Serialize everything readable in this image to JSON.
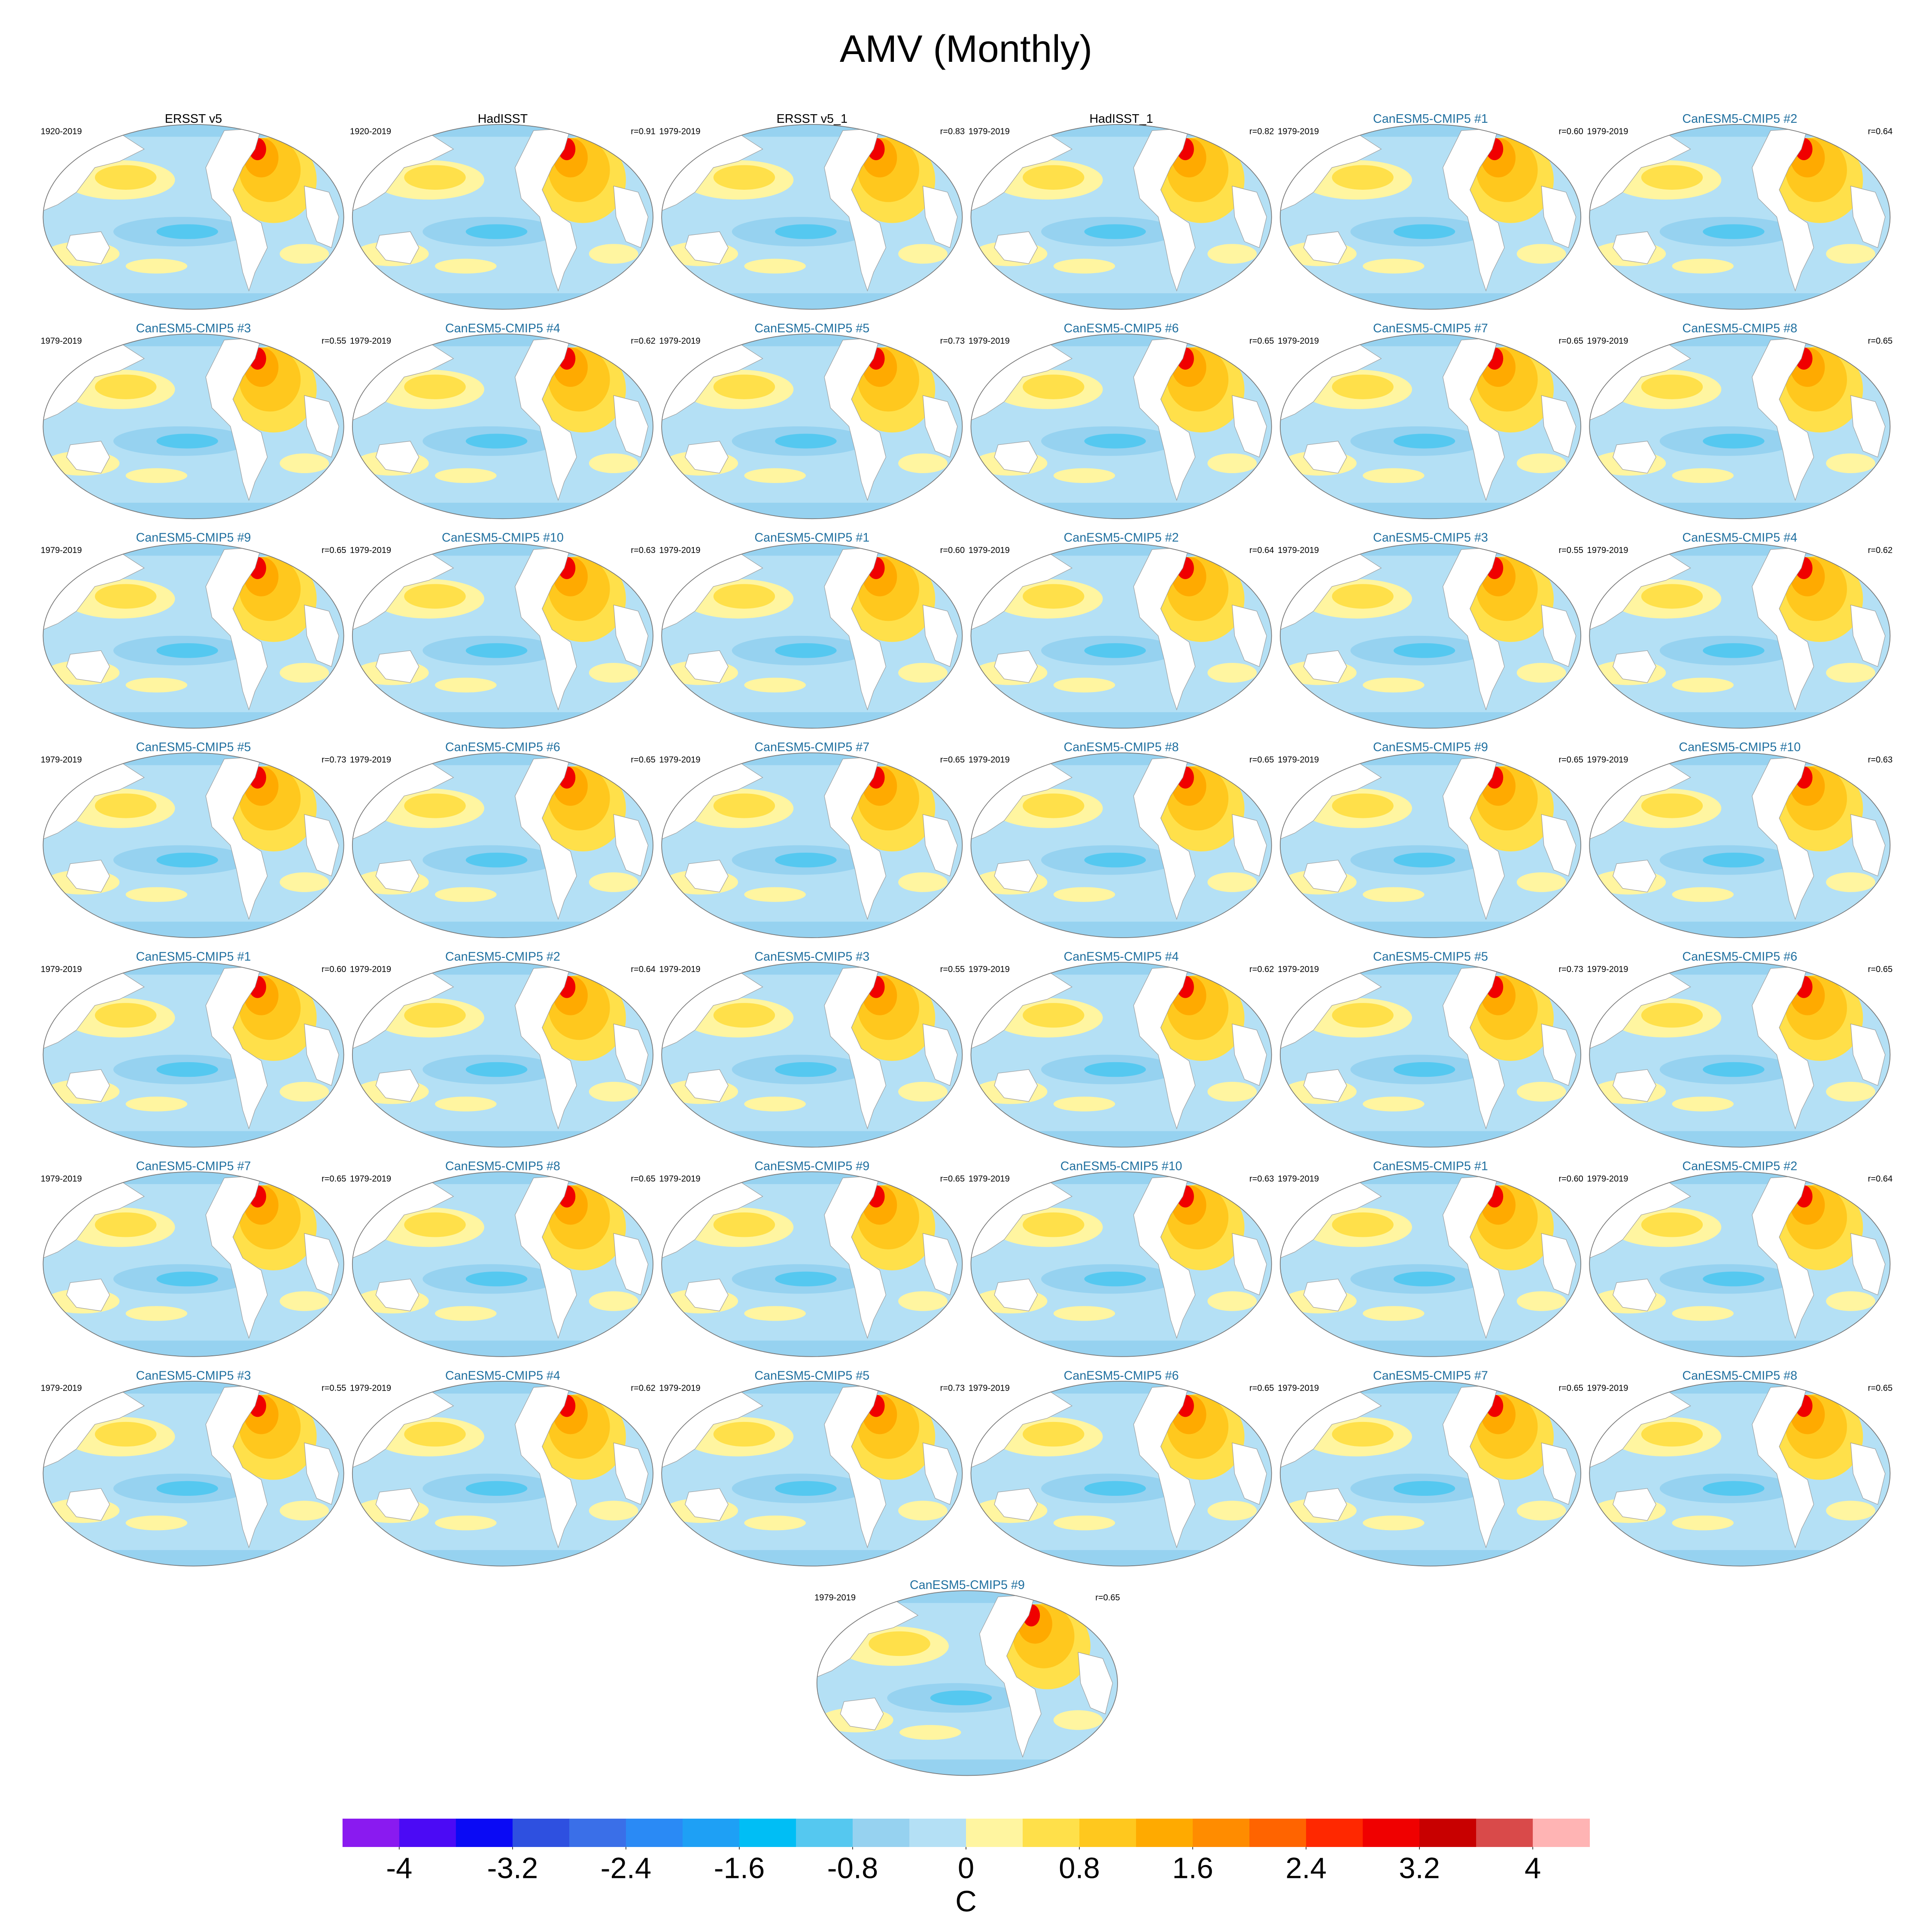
{
  "title": "AMV (Monthly)",
  "panels": [
    {
      "title": "ERSST v5",
      "title_color": "#000000",
      "period": "1920-2019"
    },
    {
      "title": "HadISST",
      "title_color": "#000000",
      "period": "1920-2019",
      "r": "r=0.91"
    },
    {
      "title": "ERSST v5_1",
      "title_color": "#000000",
      "period": "1979-2019",
      "r": "r=0.83"
    },
    {
      "title": "HadISST_1",
      "title_color": "#000000",
      "period": "1979-2019",
      "r": "r=0.82"
    },
    {
      "title": "CanESM5-CMIP5 #1",
      "title_color": "#1f6f9f",
      "period": "1979-2019",
      "r": "r=0.60"
    },
    {
      "title": "CanESM5-CMIP5 #2",
      "title_color": "#1f6f9f",
      "period": "1979-2019",
      "r": "r=0.64"
    },
    {
      "title": "CanESM5-CMIP5 #3",
      "title_color": "#1f6f9f",
      "period": "1979-2019",
      "r": "r=0.55"
    },
    {
      "title": "CanESM5-CMIP5 #4",
      "title_color": "#1f6f9f",
      "period": "1979-2019",
      "r": "r=0.62"
    },
    {
      "title": "CanESM5-CMIP5 #5",
      "title_color": "#1f6f9f",
      "period": "1979-2019",
      "r": "r=0.73"
    },
    {
      "title": "CanESM5-CMIP5 #6",
      "title_color": "#1f6f9f",
      "period": "1979-2019",
      "r": "r=0.65"
    },
    {
      "title": "CanESM5-CMIP5 #7",
      "title_color": "#1f6f9f",
      "period": "1979-2019",
      "r": "r=0.65"
    },
    {
      "title": "CanESM5-CMIP5 #8",
      "title_color": "#1f6f9f",
      "period": "1979-2019",
      "r": "r=0.65"
    },
    {
      "title": "CanESM5-CMIP5 #9",
      "title_color": "#1f6f9f",
      "period": "1979-2019",
      "r": "r=0.65"
    },
    {
      "title": "CanESM5-CMIP5 #10",
      "title_color": "#1f6f9f",
      "period": "1979-2019",
      "r": "r=0.63"
    },
    {
      "title": "CanESM5-CMIP5 #1",
      "title_color": "#1f6f9f",
      "period": "1979-2019",
      "r": "r=0.60"
    },
    {
      "title": "CanESM5-CMIP5 #2",
      "title_color": "#1f6f9f",
      "period": "1979-2019",
      "r": "r=0.64"
    },
    {
      "title": "CanESM5-CMIP5 #3",
      "title_color": "#1f6f9f",
      "period": "1979-2019",
      "r": "r=0.55"
    },
    {
      "title": "CanESM5-CMIP5 #4",
      "title_color": "#1f6f9f",
      "period": "1979-2019",
      "r": "r=0.62"
    },
    {
      "title": "CanESM5-CMIP5 #5",
      "title_color": "#1f6f9f",
      "period": "1979-2019",
      "r": "r=0.73"
    },
    {
      "title": "CanESM5-CMIP5 #6",
      "title_color": "#1f6f9f",
      "period": "1979-2019",
      "r": "r=0.65"
    },
    {
      "title": "CanESM5-CMIP5 #7",
      "title_color": "#1f6f9f",
      "period": "1979-2019",
      "r": "r=0.65"
    },
    {
      "title": "CanESM5-CMIP5 #8",
      "title_color": "#1f6f9f",
      "period": "1979-2019",
      "r": "r=0.65"
    },
    {
      "title": "CanESM5-CMIP5 #9",
      "title_color": "#1f6f9f",
      "period": "1979-2019",
      "r": "r=0.65"
    },
    {
      "title": "CanESM5-CMIP5 #10",
      "title_color": "#1f6f9f",
      "period": "1979-2019",
      "r": "r=0.63"
    },
    {
      "title": "CanESM5-CMIP5 #1",
      "title_color": "#1f6f9f",
      "period": "1979-2019",
      "r": "r=0.60"
    },
    {
      "title": "CanESM5-CMIP5 #2",
      "title_color": "#1f6f9f",
      "period": "1979-2019",
      "r": "r=0.64"
    },
    {
      "title": "CanESM5-CMIP5 #3",
      "title_color": "#1f6f9f",
      "period": "1979-2019",
      "r": "r=0.55"
    },
    {
      "title": "CanESM5-CMIP5 #4",
      "title_color": "#1f6f9f",
      "period": "1979-2019",
      "r": "r=0.62"
    },
    {
      "title": "CanESM5-CMIP5 #5",
      "title_color": "#1f6f9f",
      "period": "1979-2019",
      "r": "r=0.73"
    },
    {
      "title": "CanESM5-CMIP5 #6",
      "title_color": "#1f6f9f",
      "period": "1979-2019",
      "r": "r=0.65"
    },
    {
      "title": "CanESM5-CMIP5 #7",
      "title_color": "#1f6f9f",
      "period": "1979-2019",
      "r": "r=0.65"
    },
    {
      "title": "CanESM5-CMIP5 #8",
      "title_color": "#1f6f9f",
      "period": "1979-2019",
      "r": "r=0.65"
    },
    {
      "title": "CanESM5-CMIP5 #9",
      "title_color": "#1f6f9f",
      "period": "1979-2019",
      "r": "r=0.65"
    },
    {
      "title": "CanESM5-CMIP5 #10",
      "title_color": "#1f6f9f",
      "period": "1979-2019",
      "r": "r=0.63"
    },
    {
      "title": "CanESM5-CMIP5 #1",
      "title_color": "#1f6f9f",
      "period": "1979-2019",
      "r": "r=0.60"
    },
    {
      "title": "CanESM5-CMIP5 #2",
      "title_color": "#1f6f9f",
      "period": "1979-2019",
      "r": "r=0.64"
    },
    {
      "title": "CanESM5-CMIP5 #3",
      "title_color": "#1f6f9f",
      "period": "1979-2019",
      "r": "r=0.55"
    },
    {
      "title": "CanESM5-CMIP5 #4",
      "title_color": "#1f6f9f",
      "period": "1979-2019",
      "r": "r=0.62"
    },
    {
      "title": "CanESM5-CMIP5 #5",
      "title_color": "#1f6f9f",
      "period": "1979-2019",
      "r": "r=0.73"
    },
    {
      "title": "CanESM5-CMIP5 #6",
      "title_color": "#1f6f9f",
      "period": "1979-2019",
      "r": "r=0.65"
    },
    {
      "title": "CanESM5-CMIP5 #7",
      "title_color": "#1f6f9f",
      "period": "1979-2019",
      "r": "r=0.65"
    },
    {
      "title": "CanESM5-CMIP5 #8",
      "title_color": "#1f6f9f",
      "period": "1979-2019",
      "r": "r=0.65"
    },
    {
      "title": "CanESM5-CMIP5 #9",
      "title_color": "#1f6f9f",
      "period": "1979-2019",
      "r": "r=0.65"
    }
  ],
  "colorbar": {
    "label": "C",
    "lim": [
      -4.4,
      4.4
    ],
    "ticks": [
      -4,
      -3.2,
      -2.4,
      -1.6,
      -0.8,
      0,
      0.8,
      1.6,
      2.4,
      3.2,
      4
    ],
    "colors": [
      "#8a1af0",
      "#4b0af5",
      "#0a0af5",
      "#2e50e0",
      "#3a6fe8",
      "#2a8af5",
      "#1ea0f5",
      "#00bef5",
      "#55c8f0",
      "#96d2f0",
      "#b4e0f5",
      "#fff5a0",
      "#ffe04a",
      "#ffc81e",
      "#ffaa00",
      "#ff8c00",
      "#ff6400",
      "#ff2800",
      "#f00000",
      "#c80000",
      "#d94a4a",
      "#ffb4b4"
    ]
  }
}
